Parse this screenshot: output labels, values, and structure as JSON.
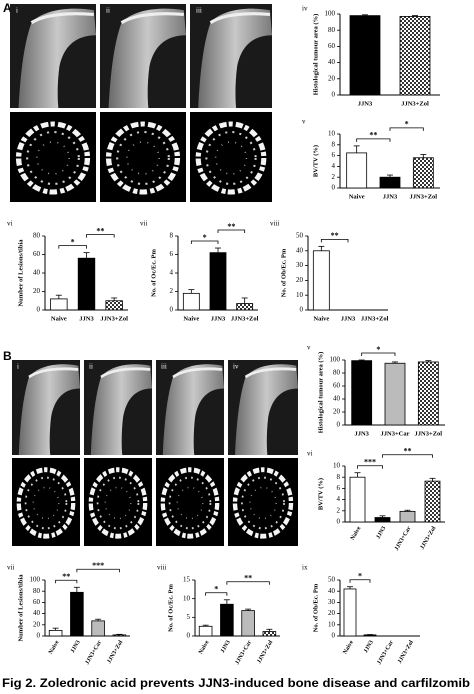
{
  "sections": [
    {
      "letter": "A",
      "image_labels": [
        "i",
        "ii",
        "iii"
      ]
    },
    {
      "letter": "B",
      "image_labels": [
        "i",
        "ii",
        "iii",
        "iv"
      ]
    }
  ],
  "caption": "Fig 2. Zoledronic acid prevents JJN3-induced bone disease and carfilzomib",
  "chart_data": [
    {
      "type": "bar",
      "label": "iv",
      "y_label": "Histological tumour area (%)",
      "categories": [
        "JJN3",
        "JJN3+Zol"
      ],
      "values": [
        98,
        97
      ],
      "errors": [
        1,
        1
      ],
      "bar_colors": [
        "#000000",
        "checker"
      ],
      "ylim": [
        0,
        100
      ],
      "yticks": [
        0,
        20,
        40,
        60,
        80,
        100
      ],
      "significance": []
    },
    {
      "type": "bar",
      "label": "v",
      "y_label": "BV/TV (%)",
      "categories": [
        "Naive",
        "JJN3",
        "JJN3+Zol"
      ],
      "values": [
        6.5,
        2,
        5.6
      ],
      "errors": [
        1.3,
        0.4,
        0.6
      ],
      "bar_colors": [
        "#ffffff",
        "#000000",
        "checker"
      ],
      "ylim": [
        0,
        10
      ],
      "yticks": [
        0,
        2,
        4,
        6,
        8,
        10
      ],
      "significance": [
        {
          "label": "**",
          "between": [
            "Naive",
            "JJN3"
          ]
        },
        {
          "label": "*",
          "between": [
            "JJN3",
            "JJN3+Zol"
          ]
        }
      ]
    },
    {
      "type": "bar",
      "label": "vi",
      "y_label": "Number of Lesions/tibia",
      "categories": [
        "Naive",
        "JJN3",
        "JJN3+Zol"
      ],
      "values": [
        12,
        56,
        10
      ],
      "errors": [
        4,
        6,
        3
      ],
      "bar_colors": [
        "#ffffff",
        "#000000",
        "checker"
      ],
      "ylim": [
        0,
        80
      ],
      "yticks": [
        0,
        20,
        40,
        60,
        80
      ],
      "significance": [
        {
          "label": "*",
          "between": [
            "Naive",
            "JJN3"
          ]
        },
        {
          "label": "**",
          "between": [
            "JJN3",
            "JJN3+Zol"
          ]
        }
      ]
    },
    {
      "type": "bar",
      "label": "vii",
      "y_label": "No. of Oc/Ec. Pm",
      "categories": [
        "Naive",
        "JJN3",
        "JJN3+Zol"
      ],
      "values": [
        1.8,
        6.2,
        0.7
      ],
      "errors": [
        0.4,
        0.5,
        0.6
      ],
      "bar_colors": [
        "#ffffff",
        "#000000",
        "checker"
      ],
      "ylim": [
        0,
        8
      ],
      "yticks": [
        0,
        2,
        4,
        6,
        8
      ],
      "significance": [
        {
          "label": "*",
          "between": [
            "Naive",
            "JJN3"
          ]
        },
        {
          "label": "**",
          "between": [
            "JJN3",
            "JJN3+Zol"
          ]
        }
      ]
    },
    {
      "type": "bar",
      "label": "viii",
      "y_label": "No. of Ob/Ec. Pm",
      "categories": [
        "Naive",
        "JJN3",
        "JJN3+Zol"
      ],
      "values": [
        40,
        0,
        0
      ],
      "errors": [
        3,
        0,
        0
      ],
      "bar_colors": [
        "#ffffff",
        "#000000",
        "checker"
      ],
      "ylim": [
        0,
        50
      ],
      "yticks": [
        0,
        10,
        20,
        30,
        40,
        50
      ],
      "significance": [
        {
          "label": "**",
          "between": [
            "Naive",
            "JJN3"
          ]
        }
      ]
    },
    {
      "type": "bar",
      "label": "v",
      "y_label": "Histological tumour area (%)",
      "categories": [
        "JJN3",
        "JJN3+Car",
        "JJN3+Zol"
      ],
      "values": [
        99,
        95,
        97
      ],
      "errors": [
        1,
        2,
        2
      ],
      "bar_colors": [
        "#000000",
        "#bbbbbb",
        "checker"
      ],
      "ylim": [
        0,
        100
      ],
      "yticks": [
        0,
        20,
        40,
        60,
        80,
        100
      ],
      "significance": [
        {
          "label": "*",
          "between": [
            "JJN3",
            "JJN3+Car"
          ]
        }
      ]
    },
    {
      "type": "bar",
      "label": "vi",
      "y_label": "BV/TV (%)",
      "categories": [
        "Naive",
        "JJN3",
        "JJN3+Car",
        "JJN3+Zol"
      ],
      "values": [
        8,
        0.8,
        1.9,
        7.3
      ],
      "errors": [
        0.8,
        0.3,
        0.2,
        0.5
      ],
      "bar_colors": [
        "#ffffff",
        "#000000",
        "#bbbbbb",
        "checker"
      ],
      "ylim": [
        0,
        10
      ],
      "yticks": [
        0,
        2,
        4,
        6,
        8,
        10
      ],
      "significance": [
        {
          "label": "***",
          "between": [
            "Naive",
            "JJN3"
          ]
        },
        {
          "label": "**",
          "between": [
            "JJN3",
            "JJN3+Zol"
          ]
        }
      ]
    },
    {
      "type": "bar",
      "label": "vii",
      "y_label": "Number of Lesions/tibia",
      "categories": [
        "Naive",
        "JJN3",
        "JJN3+Car",
        "JJN3+Zol"
      ],
      "values": [
        10,
        78,
        27,
        2
      ],
      "errors": [
        4,
        9,
        3,
        1
      ],
      "bar_colors": [
        "#ffffff",
        "#000000",
        "#bbbbbb",
        "checker"
      ],
      "ylim": [
        0,
        100
      ],
      "yticks": [
        0,
        20,
        40,
        60,
        80,
        100
      ],
      "significance": [
        {
          "label": "**",
          "between": [
            "Naive",
            "JJN3"
          ]
        },
        {
          "label": "***",
          "between": [
            "JJN3",
            "JJN3+Zol"
          ]
        }
      ]
    },
    {
      "type": "bar",
      "label": "viii",
      "y_label": "No. of Oc/Ec. Pm",
      "categories": [
        "Naive",
        "JJN3",
        "JJN3+Car",
        "JJN3+Zol"
      ],
      "values": [
        2.6,
        8.5,
        6.8,
        1.2
      ],
      "errors": [
        0.3,
        1.2,
        0.4,
        0.6
      ],
      "bar_colors": [
        "#ffffff",
        "#000000",
        "#bbbbbb",
        "checker"
      ],
      "ylim": [
        0,
        15
      ],
      "yticks": [
        0,
        5,
        10,
        15
      ],
      "significance": [
        {
          "label": "*",
          "between": [
            "Naive",
            "JJN3"
          ]
        },
        {
          "label": "**",
          "between": [
            "JJN3",
            "JJN3+Zol"
          ]
        }
      ]
    },
    {
      "type": "bar",
      "label": "ix",
      "y_label": "No. of Ob/Ec. Pm",
      "categories": [
        "Naive",
        "JJN3",
        "JJN3+Car",
        "JJN3+Zol"
      ],
      "values": [
        42,
        1,
        0,
        0
      ],
      "errors": [
        2,
        0.3,
        0,
        0
      ],
      "bar_colors": [
        "#ffffff",
        "#000000",
        "#bbbbbb",
        "checker"
      ],
      "ylim": [
        0,
        50
      ],
      "yticks": [
        0,
        10,
        20,
        30,
        40,
        50
      ],
      "significance": [
        {
          "label": "*",
          "between": [
            "Naive",
            "JJN3"
          ]
        }
      ]
    }
  ]
}
